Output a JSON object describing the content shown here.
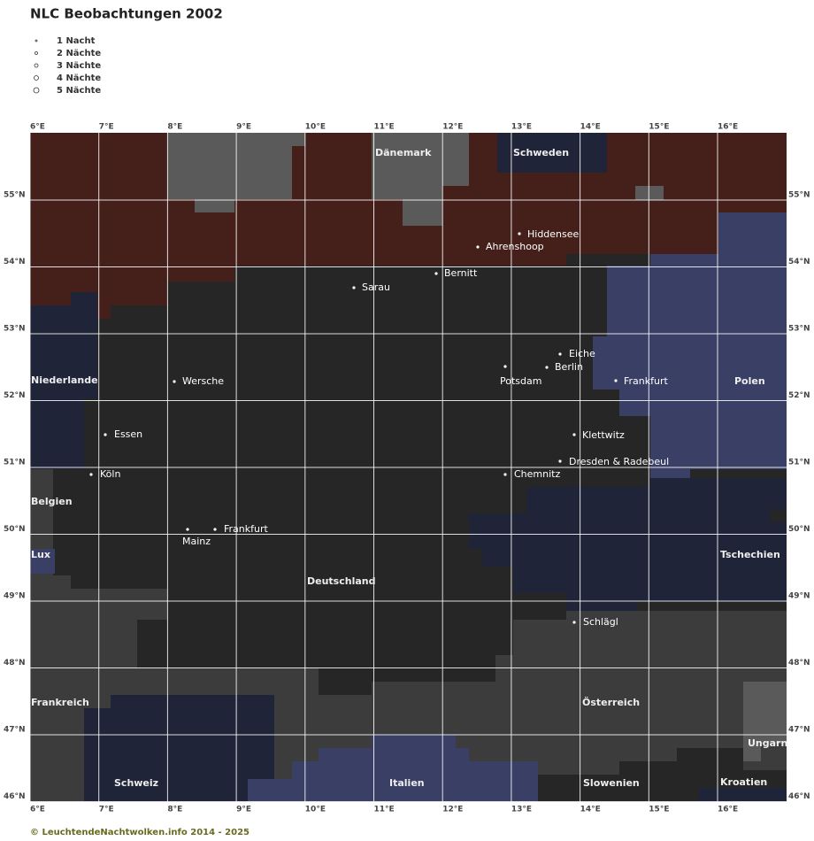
{
  "header": {
    "title": "NLC Beobachtungen 2002"
  },
  "legend": [
    "1 Nacht",
    "2 Nächte",
    "3 Nächte",
    "4 Nächte",
    "5 Nächte"
  ],
  "map": {
    "lon_ticks": [
      {
        "value": 6,
        "label": "6°E"
      },
      {
        "value": 7,
        "label": "7°E"
      },
      {
        "value": 8,
        "label": "8°E"
      },
      {
        "value": 9,
        "label": "9°E"
      },
      {
        "value": 10,
        "label": "10°E"
      },
      {
        "value": 11,
        "label": "11°E"
      },
      {
        "value": 12,
        "label": "12°E"
      },
      {
        "value": 13,
        "label": "13°E"
      },
      {
        "value": 14,
        "label": "14°E"
      },
      {
        "value": 15,
        "label": "15°E"
      },
      {
        "value": 16,
        "label": "16°E"
      }
    ],
    "lat_ticks": [
      {
        "value": 55,
        "label": "55°N"
      },
      {
        "value": 54,
        "label": "54°N"
      },
      {
        "value": 53,
        "label": "53°N"
      },
      {
        "value": 52,
        "label": "52°N"
      },
      {
        "value": 51,
        "label": "51°N"
      },
      {
        "value": 50,
        "label": "50°N"
      },
      {
        "value": 49,
        "label": "49°N"
      },
      {
        "value": 48,
        "label": "48°N"
      },
      {
        "value": 47,
        "label": "47°N"
      },
      {
        "value": 46,
        "label": "46°N"
      }
    ],
    "cities": [
      "Hiddensee",
      "Ahrenshoop",
      "Bernitt",
      "Sarau",
      "Eiche",
      "Berlin",
      "Potsdam",
      "Frankfurt",
      "Wersche",
      "Essen",
      "Klettwitz",
      "Dresden & Radebeul",
      "Köln",
      "Chemnitz",
      "Mainz",
      "Frankfurt",
      "Schlägl"
    ],
    "countries": [
      "Dänemark",
      "Schweden",
      "Niederlande",
      "Polen",
      "Belgien",
      "Lux",
      "Tschechien",
      "Deutschland",
      "Frankreich",
      "Österreich",
      "Ungarn",
      "Schweiz",
      "Italien",
      "Slowenien",
      "Kroatien"
    ]
  },
  "footer": "© LeuchtendeNachtwolken.info 2014 - 2025"
}
